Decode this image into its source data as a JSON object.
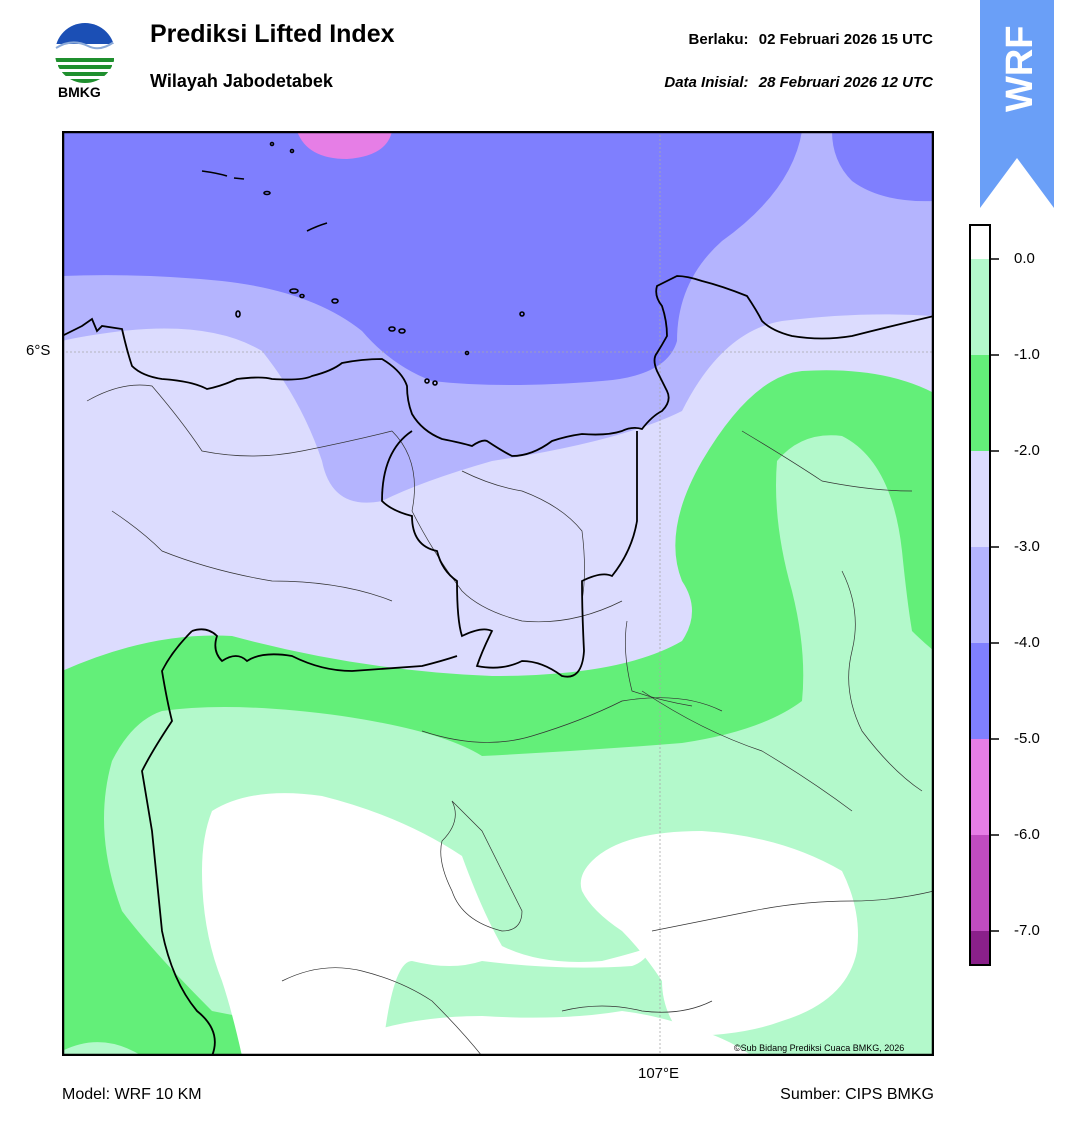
{
  "header": {
    "logo_text": "BMKG",
    "title": "Prediksi Lifted Index",
    "subtitle": "Wilayah Jabodetabek",
    "valid_label": "Berlaku:",
    "valid_value": "02 Februari 2026 15 UTC",
    "init_label": "Data Inisial:",
    "init_value": "28 Februari 2026 12 UTC"
  },
  "badge": {
    "text": "WRF",
    "color": "#6a9ff7"
  },
  "map": {
    "lat_tick": "6°S",
    "lon_tick": "107°E",
    "copyright": "©Sub Bidang Prediksi Cuaca BMKG, 2026"
  },
  "colorbar": {
    "labels": [
      "0.0",
      "-1.0",
      "-2.0",
      "-3.0",
      "-4.0",
      "-5.0",
      "-6.0",
      "-7.0"
    ],
    "colors": {
      "above_0": "#ffffff",
      "0_to_-1": "#b3f9cb",
      "-1_to_-2": "#63ef79",
      "-2_to_-3": "#dcdcfe",
      "-3_to_-4": "#b4b4fe",
      "-4_to_-5": "#7f7ffe",
      "-5_to_-6": "#e67ee6",
      "-6_to_-7": "#c04cc0",
      "below_-7": "#8a208a"
    }
  },
  "footer": {
    "model": "Model: WRF 10 KM",
    "source": "Sumber: CIPS BMKG"
  }
}
